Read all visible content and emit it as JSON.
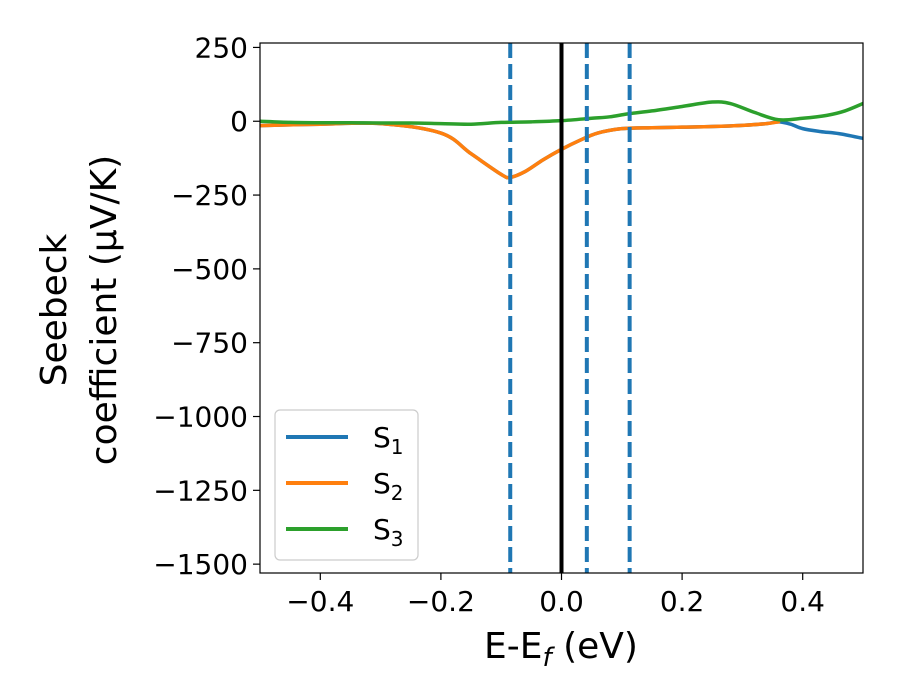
{
  "chart_data": {
    "type": "line",
    "xlabel": "E-E$_f$ (eV)",
    "ylabel_line1": "Seebeck",
    "ylabel_line2": "coefficient  (μV/K)",
    "xlim": [
      -0.5,
      0.5
    ],
    "ylim": [
      -1530,
      265
    ],
    "xticks": [
      -0.4,
      -0.2,
      0.0,
      0.2,
      0.4
    ],
    "xtick_labels": [
      "−0.4",
      "−0.2",
      "0.0",
      "0.2",
      "0.4"
    ],
    "yticks": [
      250,
      0,
      -250,
      -500,
      -750,
      -1000,
      -1250,
      -1500
    ],
    "ytick_labels": [
      "250",
      "0",
      "−250",
      "−500",
      "−750",
      "−1000",
      "−1250",
      "−1500"
    ],
    "grid": false,
    "legend_position": "lower-left",
    "vertical_lines": [
      {
        "x": -0.085,
        "style": "dashed",
        "color": "#1f77b4"
      },
      {
        "x": 0.0,
        "style": "solid",
        "color": "#000000"
      },
      {
        "x": 0.042,
        "style": "dashed",
        "color": "#1f77b4"
      },
      {
        "x": 0.113,
        "style": "dashed",
        "color": "#1f77b4"
      }
    ],
    "series": [
      {
        "name": "S",
        "subscript": "1",
        "color": "#1f77b4",
        "x": [
          -0.5,
          -0.4,
          -0.3,
          -0.2,
          -0.15,
          -0.1,
          -0.085,
          -0.06,
          -0.03,
          0.0,
          0.03,
          0.06,
          0.1,
          0.15,
          0.2,
          0.25,
          0.3,
          0.34,
          0.36,
          0.38,
          0.4,
          0.43,
          0.46,
          0.5
        ],
        "values": [
          -15,
          -10,
          -8,
          -40,
          -110,
          -180,
          -190,
          -170,
          -130,
          -95,
          -65,
          -40,
          -25,
          -22,
          -20,
          -18,
          -14,
          -8,
          -2,
          -10,
          -25,
          -35,
          -42,
          -58
        ]
      },
      {
        "name": "S",
        "subscript": "2",
        "color": "#ff7f0e",
        "x": [
          -0.5,
          -0.4,
          -0.3,
          -0.2,
          -0.15,
          -0.1,
          -0.085,
          -0.06,
          -0.03,
          0.0,
          0.03,
          0.06,
          0.1,
          0.15,
          0.2,
          0.25,
          0.3,
          0.34,
          0.36
        ],
        "values": [
          -15,
          -10,
          -8,
          -40,
          -110,
          -180,
          -190,
          -170,
          -130,
          -95,
          -65,
          -40,
          -25,
          -22,
          -20,
          -18,
          -14,
          -8,
          -2
        ]
      },
      {
        "name": "S",
        "subscript": "3",
        "color": "#2ca02c",
        "x": [
          -0.5,
          -0.45,
          -0.4,
          -0.35,
          -0.3,
          -0.25,
          -0.2,
          -0.15,
          -0.1,
          -0.05,
          0.0,
          0.05,
          0.08,
          0.11,
          0.15,
          0.2,
          0.25,
          0.28,
          0.32,
          0.36,
          0.4,
          0.44,
          0.47,
          0.5
        ],
        "values": [
          0,
          -4,
          -5,
          -5,
          -6,
          -6,
          -8,
          -10,
          -4,
          -2,
          2,
          10,
          15,
          25,
          35,
          50,
          65,
          60,
          30,
          5,
          10,
          20,
          35,
          60
        ]
      }
    ]
  }
}
